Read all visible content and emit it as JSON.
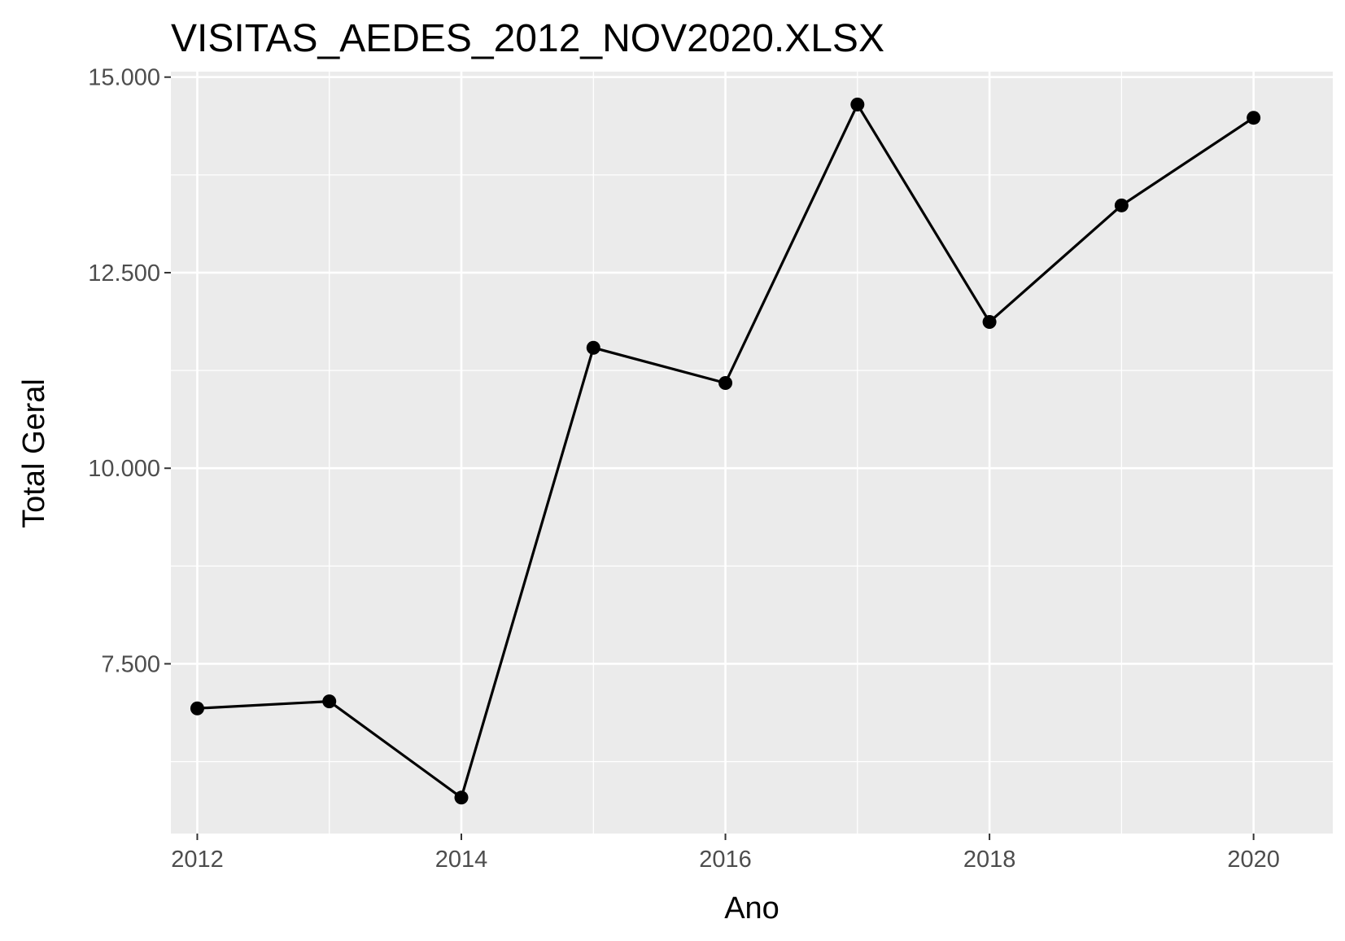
{
  "chart_data": {
    "type": "line",
    "title": "VISITAS_AEDES_2012_NOV2020.XLSX",
    "xlabel": "Ano",
    "ylabel": "Total Geral",
    "x_ticks": [
      "2012",
      "2014",
      "2016",
      "2018",
      "2020"
    ],
    "y_ticks": [
      "7.500",
      "10.000",
      "12.500",
      "15.000"
    ],
    "xlim": [
      2011.8,
      2020.6
    ],
    "ylim": [
      5330,
      15070
    ],
    "grid": true,
    "legend": "none",
    "series": [
      {
        "x": [
          2012,
          2013,
          2014,
          2015,
          2016,
          2017,
          2018,
          2019,
          2020
        ],
        "y": [
          6930,
          7020,
          5790,
          11540,
          11090,
          14650,
          11870,
          13360,
          14480
        ]
      }
    ],
    "colors": {
      "panel_background": "#ebebeb",
      "grid": "#ffffff",
      "line": "#000000",
      "point": "#000000",
      "tick_text": "#4d4d4d",
      "tick_mark": "#333333"
    }
  }
}
